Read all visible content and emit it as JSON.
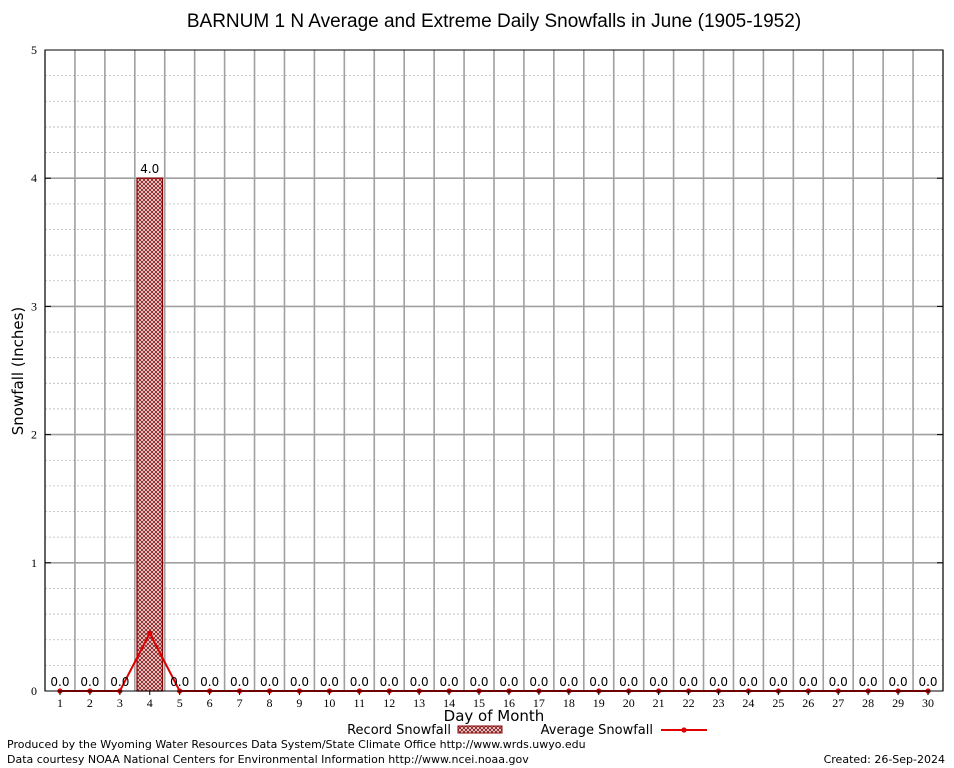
{
  "chart_data": {
    "type": "bar",
    "title": "BARNUM 1 N Average and Extreme Daily Snowfalls in June (1905-1952)",
    "xlabel": "Day of Month",
    "ylabel": "Snowfall (Inches)",
    "ylim": [
      0,
      5
    ],
    "yticks": [
      "0",
      "1",
      "2",
      "3",
      "4",
      "5"
    ],
    "categories": [
      "1",
      "2",
      "3",
      "4",
      "5",
      "6",
      "7",
      "8",
      "9",
      "10",
      "11",
      "12",
      "13",
      "14",
      "15",
      "16",
      "17",
      "18",
      "19",
      "20",
      "21",
      "22",
      "23",
      "24",
      "25",
      "26",
      "27",
      "28",
      "29",
      "30"
    ],
    "series": [
      {
        "name": "Record Snowfall",
        "type": "bar",
        "values": [
          0,
          0,
          0,
          4.0,
          0,
          0,
          0,
          0,
          0,
          0,
          0,
          0,
          0,
          0,
          0,
          0,
          0,
          0,
          0,
          0,
          0,
          0,
          0,
          0,
          0,
          0,
          0,
          0,
          0,
          0
        ],
        "labels": [
          "0.0",
          "0.0",
          "0.0",
          "4.0",
          "0.0",
          "0.0",
          "0.0",
          "0.0",
          "0.0",
          "0.0",
          "0.0",
          "0.0",
          "0.0",
          "0.0",
          "0.0",
          "0.0",
          "0.0",
          "0.0",
          "0.0",
          "0.0",
          "0.0",
          "0.0",
          "0.0",
          "0.0",
          "0.0",
          "0.0",
          "0.0",
          "0.0",
          "0.0",
          "0.0"
        ]
      },
      {
        "name": "Average Snowfall",
        "type": "line",
        "values": [
          0,
          0,
          0,
          0.45,
          0,
          0,
          0,
          0,
          0,
          0,
          0,
          0,
          0,
          0,
          0,
          0,
          0,
          0,
          0,
          0,
          0,
          0,
          0,
          0,
          0,
          0,
          0,
          0,
          0,
          0
        ]
      }
    ],
    "grid": true,
    "legend": "bottom",
    "colors": {
      "bar_fill": "#c8a8a8",
      "bar_edge": "#8b0000",
      "line": "#e00000",
      "grid": "#a0a0a0"
    }
  },
  "footer": {
    "line1": "Produced by the Wyoming Water Resources Data System/State Climate Office http://www.wrds.uwyo.edu",
    "line2": "Data courtesy NOAA National Centers for Environmental Information http://www.ncei.noaa.gov",
    "created": "Created: 26-Sep-2024"
  }
}
